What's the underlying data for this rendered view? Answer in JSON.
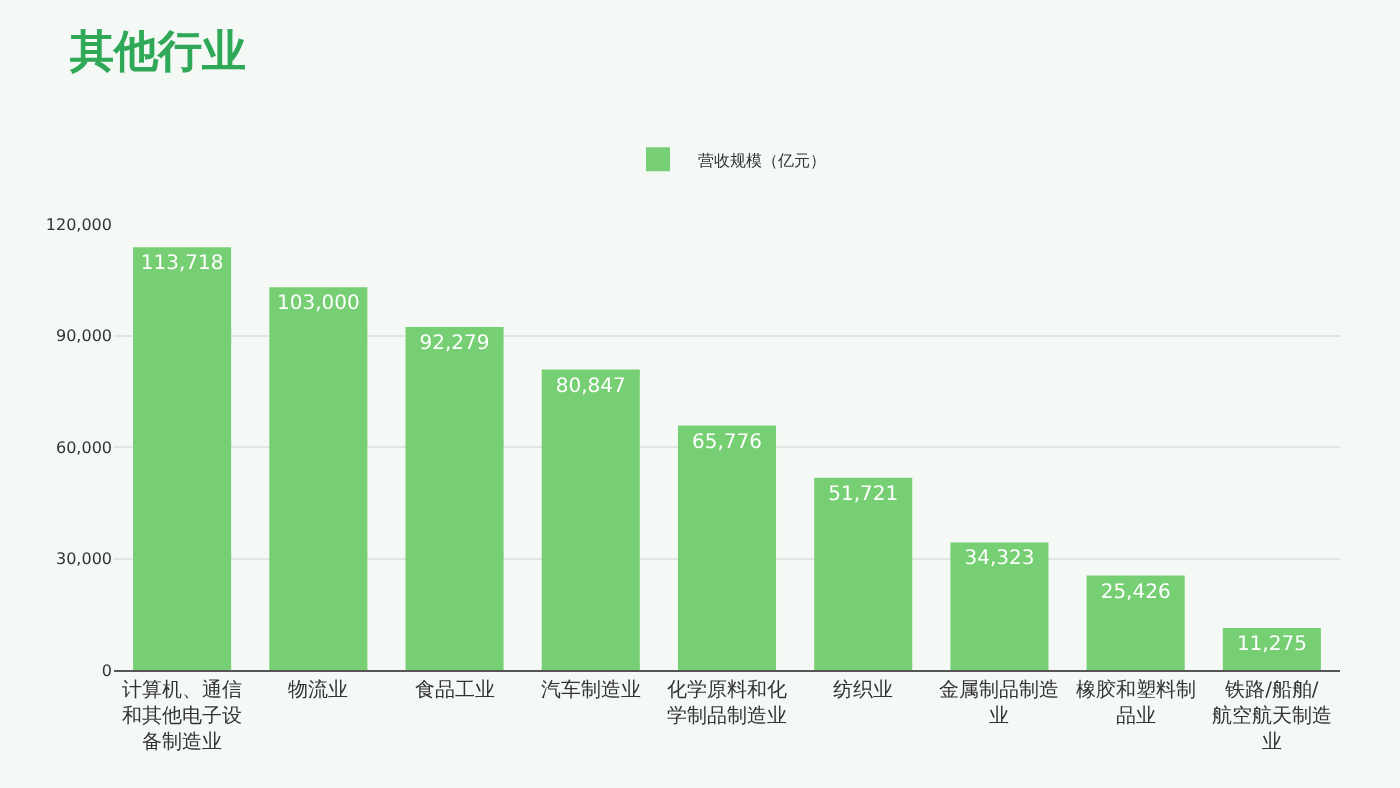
{
  "chart_data": {
    "type": "bar",
    "title": "其他行业",
    "categories": [
      "计算机、通信和其他电子设备制造业",
      "物流业",
      "食品工业",
      "汽车制造业",
      "化学原料和化学制品制造业",
      "纺织业",
      "金属制品制造业",
      "橡胶和塑料制品业",
      "铁路/船舶/航空航天制造业"
    ],
    "series": [
      {
        "name": "营收规模（亿元）",
        "color": "#77cf74",
        "values": [
          113718,
          103000,
          92279,
          80847,
          65776,
          51721,
          34323,
          25426,
          11275
        ],
        "value_labels": [
          "113,718",
          "103,000",
          "92,279",
          "80,847",
          "65,776",
          "51,721",
          "34,323",
          "25,426",
          "11,275"
        ]
      }
    ],
    "ylim": [
      0,
      120000
    ],
    "yticks": [
      0,
      {
        "value": 30000,
        "label": "30,000"
      },
      {
        "value": 60000,
        "label": "60,000"
      },
      {
        "value": 90000,
        "label": "90,000"
      },
      {
        "value": 120000,
        "label": "120,000"
      }
    ],
    "grid": "y",
    "legend": "top"
  }
}
